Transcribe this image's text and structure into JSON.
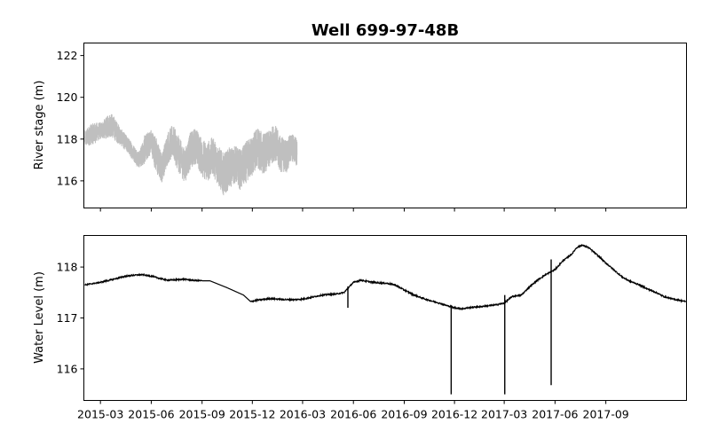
{
  "chart_data": {
    "type": "line",
    "title": "Well 699-97-48B",
    "shared_x": {
      "type": "date",
      "range": [
        "2015-01-30",
        "2018-01-25"
      ],
      "ticks": [
        "2015-03",
        "2015-06",
        "2015-09",
        "2015-12",
        "2016-03",
        "2016-06",
        "2016-09",
        "2016-12",
        "2017-03",
        "2017-06",
        "2017-09"
      ]
    },
    "panels": [
      {
        "ylabel": "River stage (m)",
        "ylim": [
          114.7,
          122.6
        ],
        "yticks": [
          116,
          118,
          120,
          122
        ],
        "color": "#bfbfbf",
        "series": [
          {
            "x": [
              "2015-02-01",
              "2015-02-10",
              "2015-02-20",
              "2015-03-01",
              "2015-03-10",
              "2015-03-20",
              "2015-04-01",
              "2015-04-10",
              "2015-04-20",
              "2015-05-01",
              "2015-05-10",
              "2015-05-20",
              "2015-06-01",
              "2015-06-10",
              "2015-06-20",
              "2015-07-01",
              "2015-07-10",
              "2015-07-20",
              "2015-08-01",
              "2015-08-10",
              "2015-08-20",
              "2015-09-01",
              "2015-09-10",
              "2015-09-20",
              "2015-10-01",
              "2015-10-10",
              "2015-10-20",
              "2015-11-01",
              "2015-11-10",
              "2015-11-20",
              "2015-12-01",
              "2015-12-10",
              "2015-12-20",
              "2016-01-01",
              "2016-01-10",
              "2016-01-20",
              "2016-02-01",
              "2016-02-10",
              "2016-02-20"
            ],
            "y": [
              118.0,
              118.2,
              118.3,
              118.4,
              118.5,
              118.7,
              118.3,
              118.0,
              117.7,
              117.3,
              117.0,
              117.5,
              117.9,
              117.2,
              116.6,
              117.6,
              117.9,
              117.3,
              116.7,
              117.4,
              117.7,
              117.1,
              116.9,
              117.2,
              116.7,
              116.3,
              116.6,
              116.8,
              116.5,
              116.9,
              117.2,
              117.6,
              117.3,
              117.5,
              117.9,
              117.3,
              117.2,
              117.6,
              117.4
            ],
            "band": [
              0.4,
              0.5,
              0.5,
              0.4,
              0.5,
              0.6,
              0.5,
              0.4,
              0.4,
              0.4,
              0.4,
              0.7,
              0.6,
              0.9,
              0.7,
              0.8,
              0.8,
              0.9,
              0.8,
              0.9,
              0.9,
              0.9,
              1.0,
              0.9,
              1.0,
              1.0,
              1.0,
              0.9,
              1.0,
              1.0,
              1.0,
              1.0,
              1.0,
              0.9,
              0.9,
              0.9,
              0.8,
              0.7,
              0.7
            ]
          }
        ]
      },
      {
        "ylabel": "Water Level (m)",
        "ylim": [
          115.38,
          118.62
        ],
        "yticks": [
          116,
          117,
          118
        ],
        "color": "#000000",
        "series": [
          {
            "x": [
              "2015-02-01",
              "2015-03-01",
              "2015-04-01",
              "2015-04-15",
              "2015-05-01",
              "2015-05-15",
              "2015-06-01",
              "2015-06-15",
              "2015-07-01",
              "2015-07-15",
              "2015-08-01",
              "2015-08-15",
              "2015-09-01",
              "2015-09-15",
              "2015-10-15",
              "2015-11-15",
              "2015-11-28",
              "2015-12-10",
              "2016-01-01",
              "2016-01-15",
              "2016-02-01",
              "2016-02-15",
              "2016-03-01",
              "2016-03-15",
              "2016-04-01",
              "2016-04-15",
              "2016-05-01",
              "2016-05-15",
              "2016-06-01",
              "2016-06-15",
              "2016-07-01",
              "2016-07-15",
              "2016-08-01",
              "2016-08-15",
              "2016-09-01",
              "2016-09-15",
              "2016-10-01",
              "2016-10-15",
              "2016-11-01",
              "2016-11-15",
              "2016-12-01",
              "2016-12-15",
              "2017-01-01",
              "2017-01-15",
              "2017-02-01",
              "2017-02-15",
              "2017-03-01",
              "2017-03-15",
              "2017-04-01",
              "2017-04-15",
              "2017-05-01",
              "2017-05-15",
              "2017-06-01",
              "2017-06-15",
              "2017-07-01",
              "2017-07-10",
              "2017-07-20",
              "2017-08-01",
              "2017-08-15",
              "2017-09-01",
              "2017-09-15",
              "2017-10-01",
              "2017-10-15",
              "2017-11-01",
              "2017-11-15",
              "2017-12-01",
              "2017-12-15",
              "2018-01-01",
              "2018-01-15",
              "2018-01-24"
            ],
            "y": [
              117.65,
              117.7,
              117.78,
              117.82,
              117.84,
              117.85,
              117.82,
              117.78,
              117.74,
              117.75,
              117.76,
              117.74,
              117.73,
              117.73,
              117.6,
              117.45,
              117.32,
              117.35,
              117.38,
              117.37,
              117.36,
              117.36,
              117.37,
              117.4,
              117.44,
              117.46,
              117.47,
              117.5,
              117.7,
              117.74,
              117.71,
              117.69,
              117.68,
              117.65,
              117.55,
              117.47,
              117.4,
              117.35,
              117.3,
              117.25,
              117.2,
              117.18,
              117.21,
              117.22,
              117.24,
              117.26,
              117.29,
              117.42,
              117.45,
              117.6,
              117.75,
              117.85,
              117.95,
              118.12,
              118.25,
              118.38,
              118.43,
              118.38,
              118.25,
              118.08,
              117.95,
              117.8,
              117.72,
              117.65,
              117.57,
              117.5,
              117.42,
              117.37,
              117.34,
              117.32
            ]
          }
        ],
        "spikes": [
          {
            "x": "2016-05-22",
            "y_top": 117.62,
            "y_bottom": 117.2
          },
          {
            "x": "2016-11-25",
            "y_top": 117.2,
            "y_bottom": 115.5
          },
          {
            "x": "2017-03-02",
            "y_top": 117.45,
            "y_bottom": 115.5
          },
          {
            "x": "2017-05-25",
            "y_top": 118.15,
            "y_bottom": 115.68
          }
        ]
      }
    ]
  }
}
